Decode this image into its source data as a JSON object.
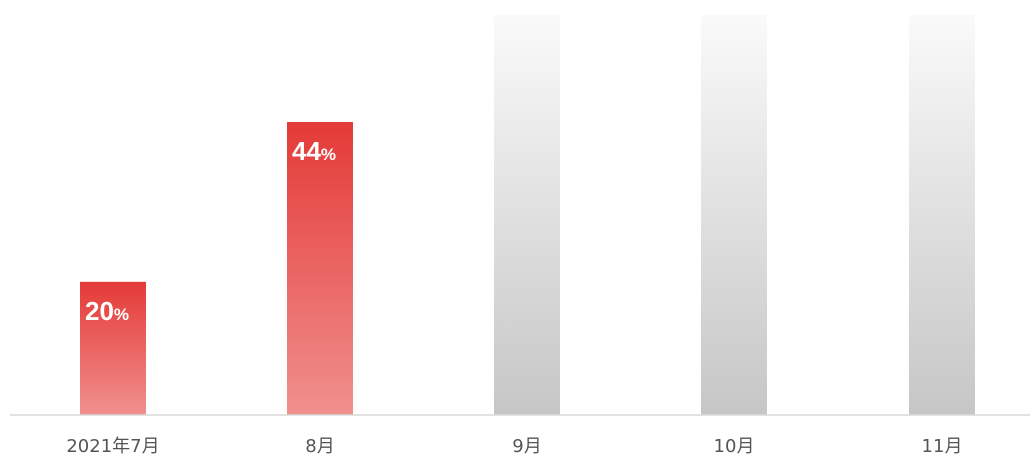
{
  "chart_data": {
    "type": "bar",
    "categories": [
      "2021年7月",
      "8月",
      "9月",
      "10月",
      "11月"
    ],
    "values": [
      20,
      44,
      null,
      null,
      null
    ],
    "data_labels": [
      "20%",
      "44%",
      "",
      "",
      ""
    ],
    "placeholder_bars": [
      false,
      false,
      true,
      true,
      true
    ],
    "ylim": [
      0,
      100
    ],
    "grid": false,
    "legend": "none",
    "colors": {
      "bar_top": "#e43a37",
      "bar_bottom": "#f0908e",
      "placeholder_top": "#fafafa",
      "placeholder_bottom": "#c6c6c6",
      "baseline": "#d9d9d9",
      "label_text": "#ffffff",
      "tick_text": "#555555"
    }
  }
}
